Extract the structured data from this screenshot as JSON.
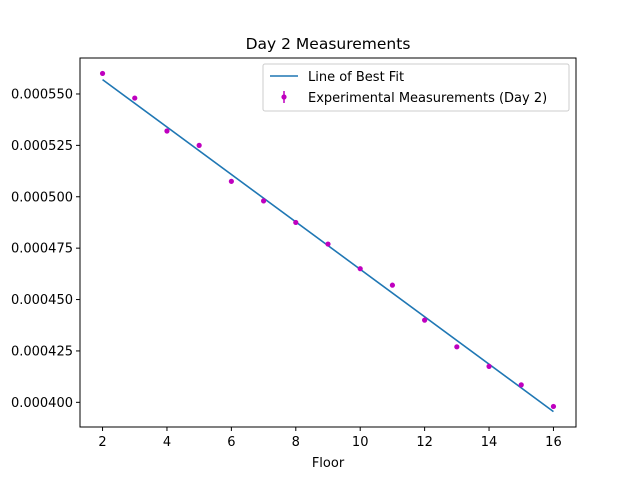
{
  "chart_data": {
    "type": "scatter",
    "title": "Day 2 Measurements",
    "xlabel": "Floor",
    "ylabel": "",
    "xlim": [
      1.3,
      16.7
    ],
    "ylim": [
      0.000388,
      0.0005675
    ],
    "x_ticks": [
      2,
      4,
      6,
      8,
      10,
      12,
      14,
      16
    ],
    "x_tick_labels": [
      "2",
      "4",
      "6",
      "8",
      "10",
      "12",
      "14",
      "16"
    ],
    "y_ticks": [
      0.0004,
      0.000425,
      0.00045,
      0.000475,
      0.0005,
      0.000525,
      0.00055
    ],
    "y_tick_labels": [
      "0.000400",
      "0.000425",
      "0.000450",
      "0.000475",
      "0.000500",
      "0.000525",
      "0.000550"
    ],
    "grid": false,
    "legend_position": "top-right",
    "series": [
      {
        "name": "Line of Best Fit",
        "kind": "line",
        "color": "#1f77b4",
        "x": [
          2,
          16
        ],
        "y": [
          0.000557,
          0.0003955
        ]
      },
      {
        "name": "Experimental Measurements (Day 2)",
        "kind": "scatter",
        "color": "#bf00bf",
        "x": [
          2,
          3,
          4,
          5,
          6,
          7,
          8,
          9,
          10,
          11,
          12,
          13,
          14,
          15,
          16
        ],
        "y": [
          0.00056,
          0.000548,
          0.000532,
          0.000525,
          0.0005075,
          0.000498,
          0.0004875,
          0.000477,
          0.000465,
          0.000457,
          0.00044,
          0.000427,
          0.0004175,
          0.0004085,
          0.000398
        ]
      }
    ]
  }
}
